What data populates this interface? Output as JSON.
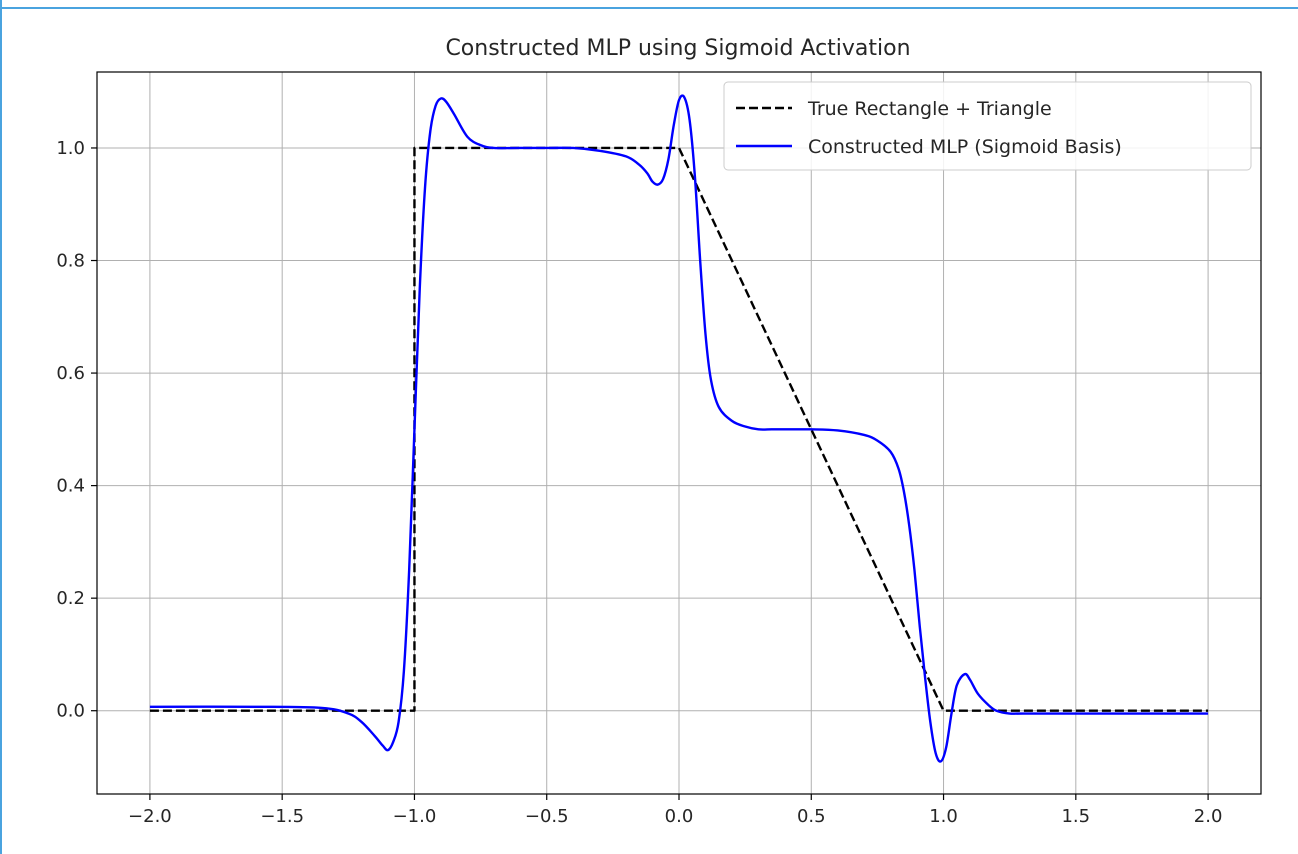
{
  "ui": {
    "accent_color": "#4aa3df"
  },
  "chart_data": {
    "type": "line",
    "title": "Constructed MLP using Sigmoid Activation",
    "xlabel": "",
    "ylabel": "",
    "xlim": [
      -2.2,
      2.2
    ],
    "ylim": [
      -0.148,
      1.135
    ],
    "grid": true,
    "legend_position": "top-right",
    "x_ticks": [
      {
        "value": -2.0,
        "label": "−2.0"
      },
      {
        "value": -1.5,
        "label": "−1.5"
      },
      {
        "value": -1.0,
        "label": "−1.0"
      },
      {
        "value": -0.5,
        "label": "−0.5"
      },
      {
        "value": 0.0,
        "label": "0.0"
      },
      {
        "value": 0.5,
        "label": "0.5"
      },
      {
        "value": 1.0,
        "label": "1.0"
      },
      {
        "value": 1.5,
        "label": "1.5"
      },
      {
        "value": 2.0,
        "label": "2.0"
      }
    ],
    "y_ticks": [
      {
        "value": 0.0,
        "label": "0.0"
      },
      {
        "value": 0.2,
        "label": "0.2"
      },
      {
        "value": 0.4,
        "label": "0.4"
      },
      {
        "value": 0.6,
        "label": "0.6"
      },
      {
        "value": 0.8,
        "label": "0.8"
      },
      {
        "value": 1.0,
        "label": "1.0"
      }
    ],
    "series": [
      {
        "name": "True Rectangle + Triangle",
        "color": "#000000",
        "style": "dashed",
        "x": [
          -2.0,
          -1.0,
          -1.0,
          0.0,
          1.0,
          2.0
        ],
        "y": [
          0.0,
          0.0,
          1.0,
          1.0,
          0.0,
          0.0
        ]
      },
      {
        "name": "Constructed MLP (Sigmoid Basis)",
        "color": "#0000ff",
        "style": "solid",
        "x": [
          -2.0,
          -1.6,
          -1.35,
          -1.25,
          -1.2,
          -1.15,
          -1.12,
          -1.1,
          -1.08,
          -1.06,
          -1.04,
          -1.02,
          -1.0,
          -0.98,
          -0.96,
          -0.94,
          -0.92,
          -0.9,
          -0.88,
          -0.85,
          -0.8,
          -0.75,
          -0.7,
          -0.6,
          -0.5,
          -0.4,
          -0.3,
          -0.2,
          -0.15,
          -0.12,
          -0.1,
          -0.08,
          -0.06,
          -0.04,
          -0.02,
          0.0,
          0.02,
          0.04,
          0.06,
          0.08,
          0.1,
          0.12,
          0.15,
          0.2,
          0.25,
          0.3,
          0.35,
          0.4,
          0.5,
          0.6,
          0.7,
          0.75,
          0.8,
          0.83,
          0.85,
          0.87,
          0.89,
          0.91,
          0.93,
          0.95,
          0.97,
          0.99,
          1.01,
          1.03,
          1.05,
          1.08,
          1.1,
          1.13,
          1.17,
          1.2,
          1.25,
          1.3,
          1.5,
          2.0
        ],
        "y": [
          0.007,
          0.007,
          0.005,
          -0.005,
          -0.02,
          -0.045,
          -0.062,
          -0.07,
          -0.055,
          -0.02,
          0.07,
          0.25,
          0.5,
          0.75,
          0.93,
          1.03,
          1.075,
          1.088,
          1.082,
          1.06,
          1.02,
          1.005,
          1.0,
          1.0,
          1.0,
          1.0,
          0.995,
          0.985,
          0.97,
          0.955,
          0.94,
          0.935,
          0.945,
          0.98,
          1.04,
          1.085,
          1.09,
          1.05,
          0.95,
          0.8,
          0.67,
          0.59,
          0.54,
          0.515,
          0.505,
          0.5,
          0.5,
          0.5,
          0.5,
          0.498,
          0.49,
          0.48,
          0.46,
          0.43,
          0.39,
          0.33,
          0.25,
          0.15,
          0.06,
          -0.02,
          -0.075,
          -0.09,
          -0.065,
          -0.005,
          0.045,
          0.065,
          0.055,
          0.03,
          0.01,
          0.0,
          -0.005,
          -0.005,
          -0.005,
          -0.005
        ]
      }
    ]
  }
}
